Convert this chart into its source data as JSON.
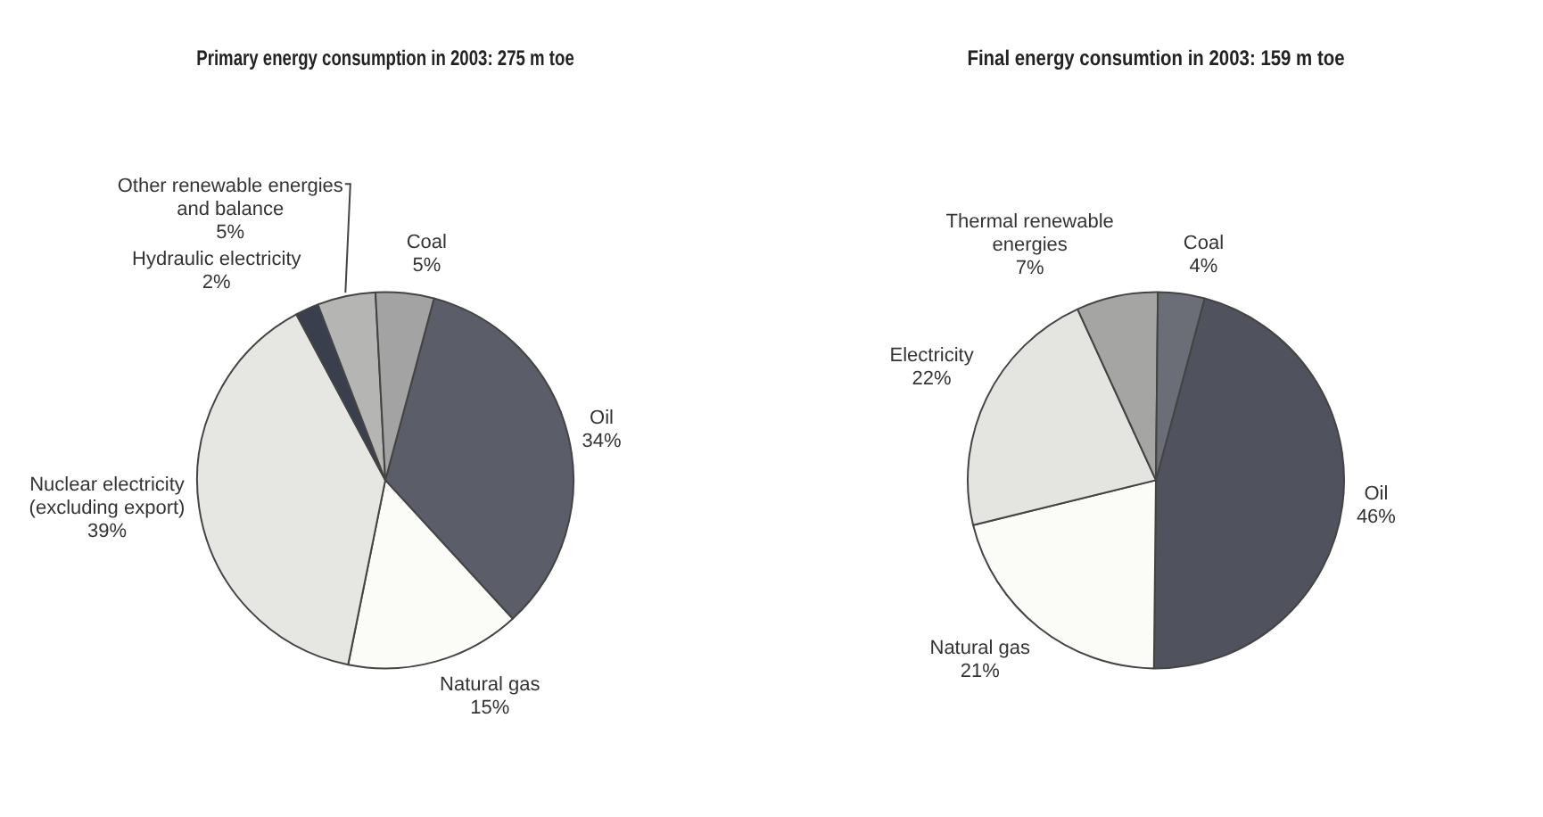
{
  "chart_data": [
    {
      "type": "pie",
      "title": "Primary energy consumption in 2003: 275 m toe",
      "categories": [
        "Oil",
        "Natural gas",
        "Nuclear electricity (excluding export)",
        "Hydraulic electricity",
        "Other renewable energies and balance",
        "Coal"
      ],
      "values": [
        34,
        15,
        39,
        2,
        5,
        5
      ],
      "value_labels": [
        "34%",
        "15%",
        "39%",
        "2%",
        "5%",
        "5%"
      ],
      "colors": [
        "#5b5e68",
        "#fbfbf8",
        "#e6e6e3",
        "#3a3f4e",
        "#b5b5b3",
        "#a3a3a3"
      ],
      "legend": false
    },
    {
      "type": "pie",
      "title": "Final energy consumtion in 2003: 159 m toe",
      "categories": [
        "Oil",
        "Natural gas",
        "Electricity",
        "Thermal renewable energies",
        "Coal"
      ],
      "values": [
        46,
        21,
        22,
        7,
        4
      ],
      "value_labels": [
        "46%",
        "21%",
        "22%",
        "7%",
        "4%"
      ],
      "colors": [
        "#50535d",
        "#fbfbf8",
        "#e4e4e1",
        "#a5a5a4",
        "#6b6e76"
      ],
      "legend": false
    }
  ]
}
